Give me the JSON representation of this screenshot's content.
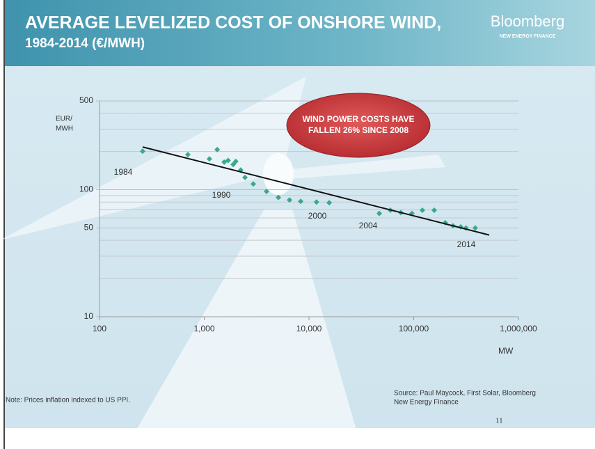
{
  "header": {
    "title": [
      "AVERAGE LEVELIZED COST OF ONSHORE WIND,",
      "1984-2014 (€/MWH)"
    ],
    "logo": "Bloomberg",
    "logo_sub": "NEW ENERGY FINANCE"
  },
  "chart_data": {
    "type": "scatter",
    "log_x": true,
    "log_y": true,
    "y_label": [
      "EUR/",
      "MWH"
    ],
    "x_label": "MW",
    "xlim": [
      100,
      1000000
    ],
    "xticks": [
      100,
      {
        "value": 1000,
        "label": "1,000"
      },
      {
        "value": 10000,
        "label": "10,000"
      },
      {
        "value": 100000,
        "label": "100,000"
      },
      {
        "value": 1000000,
        "label": "1,000,000"
      }
    ],
    "ylim": [
      10,
      500
    ],
    "yticks": [
      10,
      50,
      100,
      500
    ],
    "ygrid": [
      20,
      30,
      40,
      60,
      70,
      80,
      90,
      200,
      300,
      400
    ],
    "series": [
      {
        "color": "#3aa88a",
        "x": [
          258,
          698,
          1120,
          1330,
          1550,
          1690,
          1890,
          2000,
          2230,
          2450,
          2940,
          3930,
          5100,
          6520,
          8330,
          11800,
          15600,
          46900,
          59800,
          75300,
          96100,
          121000,
          157000,
          200000,
          237000,
          281000,
          316000,
          387000
        ],
        "values": [
          201,
          189,
          175,
          207,
          165,
          170,
          158,
          167,
          143,
          125,
          111,
          97,
          87,
          83,
          81,
          80,
          79,
          65,
          69,
          66,
          65,
          69,
          69,
          55,
          52,
          51,
          50,
          50
        ]
      }
    ],
    "trend": {
      "color": "#111111",
      "x": [
        258,
        526000
      ],
      "values": [
        217,
        44
      ]
    },
    "annotations": [
      "1984",
      "1990",
      "2000",
      "2004",
      "2014"
    ],
    "callout": [
      "WIND POWER COSTS HAVE",
      "FALLEN 26% SINCE 2008"
    ]
  },
  "footer": {
    "note": "Note: Prices inflation indexed to US PPI.",
    "source": [
      "Source: Paul Maycock, First Solar, Bloomberg",
      "New Energy Finance"
    ],
    "page": "11"
  }
}
